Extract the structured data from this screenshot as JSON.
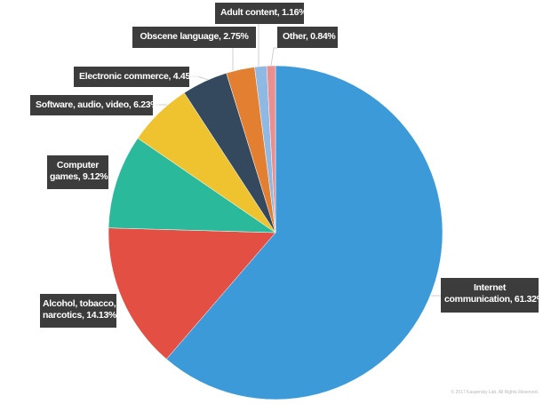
{
  "chart_data": {
    "type": "pie",
    "title": "",
    "start_angle_deg": 0,
    "direction": "clockwise",
    "slices": [
      {
        "label": "Internet communication",
        "value": 61.32,
        "color": "#3c9ad9",
        "display": "Internet communication, 61.32%"
      },
      {
        "label": "Alcohol, tobacco, narcotics",
        "value": 14.13,
        "color": "#e44f43",
        "display": "Alcohol, tobacco, narcotics, 14.13%"
      },
      {
        "label": "Computer games",
        "value": 9.12,
        "color": "#2bb99b",
        "display": "Computer games, 9.12%"
      },
      {
        "label": "Software, audio, video",
        "value": 6.23,
        "color": "#efc22f",
        "display": "Software, audio, video, 6.23%"
      },
      {
        "label": "Electronic commerce",
        "value": 4.45,
        "color": "#34495e",
        "display": "Electronic commerce, 4.45%"
      },
      {
        "label": "Obscene language",
        "value": 2.75,
        "color": "#e37f31",
        "display": "Obscene language, 2.75%"
      },
      {
        "label": "Adult content",
        "value": 1.16,
        "color": "#8fb8e3",
        "display": "Adult content, 1.16%"
      },
      {
        "label": "Other",
        "value": 0.84,
        "color": "#ea8f8f",
        "display": "Other, 0.84%"
      }
    ],
    "legend": "callout labels"
  },
  "labels": {
    "internet": {
      "line1": "Internet",
      "line2": "communication, 61.32%"
    },
    "alcohol": {
      "line1": "Alcohol, tobacco,",
      "line2": "narcotics, 14.13%"
    },
    "games": {
      "line1": "Computer",
      "line2": "games, 9.12%"
    },
    "software": {
      "text": "Software, audio, video, 6.23%"
    },
    "ecommerce": {
      "text": "Electronic commerce, 4.45%"
    },
    "obscene": {
      "text": "Obscene language, 2.75%"
    },
    "adult": {
      "text": "Adult content, 1.16%"
    },
    "other": {
      "text": "Other, 0.84%"
    }
  },
  "footer": {
    "copyright": "© 2017 Kaspersky Lab. All Rights Reserved."
  },
  "colors": {
    "label_bg": "#3c3c3c",
    "leader_line": "#cccccc"
  }
}
